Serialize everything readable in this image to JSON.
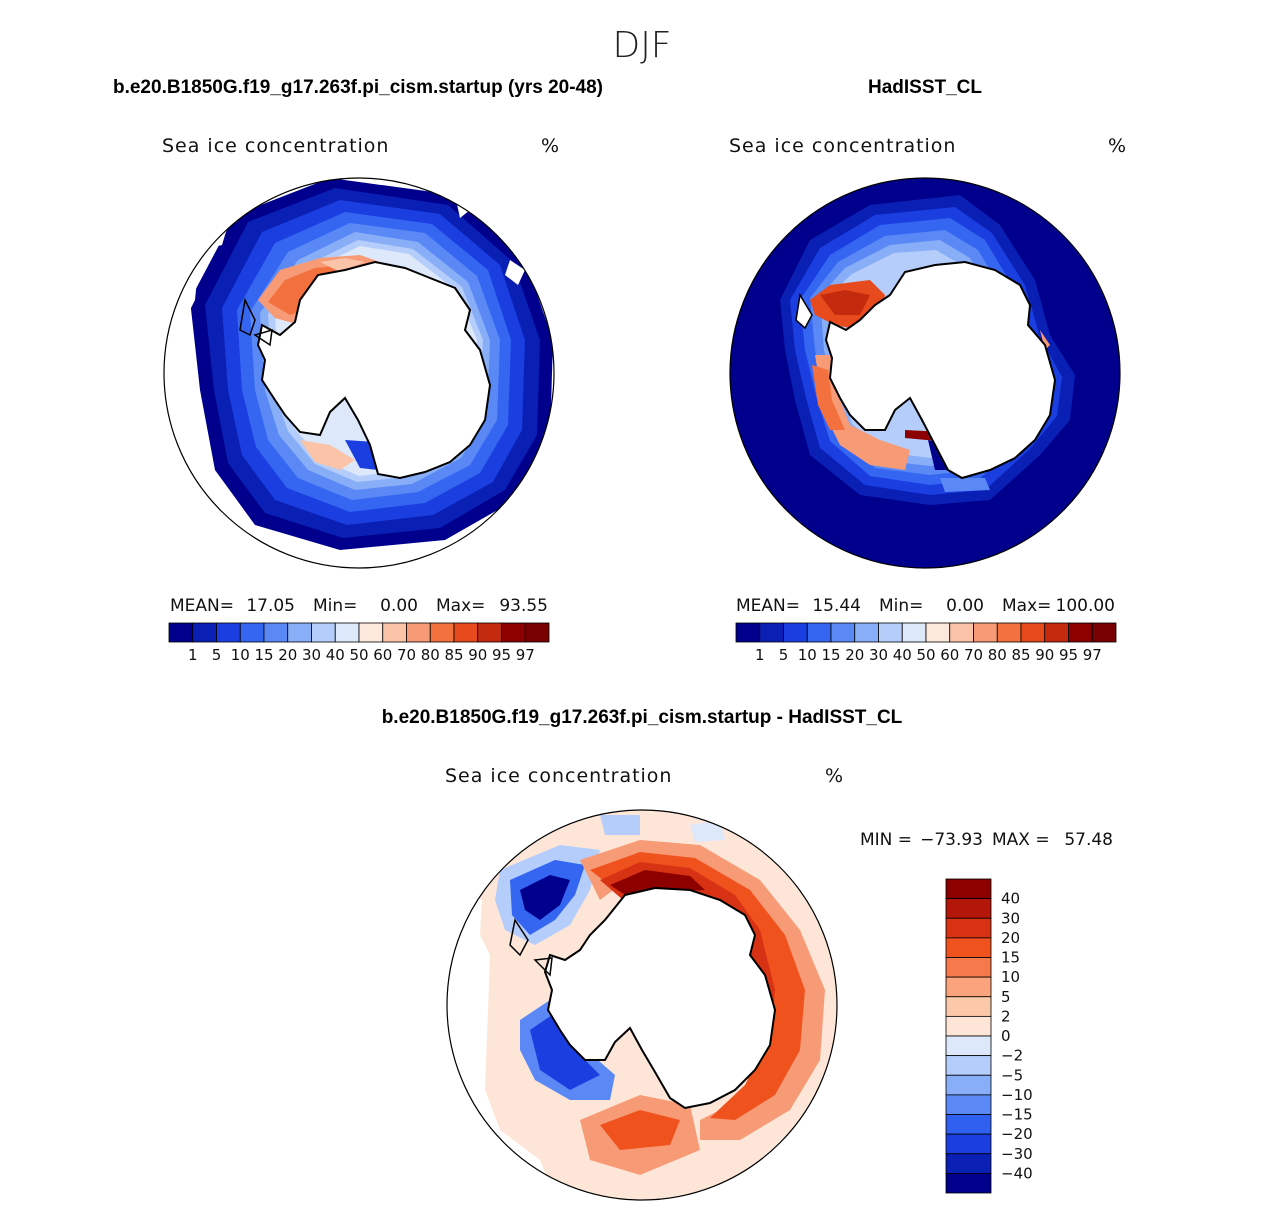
{
  "season": "DJF",
  "panels": {
    "model": {
      "title": "b.e20.B1850G.f19_g17.263f.pi_cism.startup (yrs 20-48)",
      "variable": "Sea ice concentration",
      "units": "%",
      "mean_label": "MEAN=",
      "mean": "17.05",
      "min_label": "Min=",
      "min": "0.00",
      "max_label": "Max=",
      "max": "93.55"
    },
    "obs": {
      "title": "HadISST_CL",
      "variable": "Sea ice concentration",
      "units": "%",
      "mean_label": "MEAN=",
      "mean": "15.44",
      "min_label": "Min=",
      "min": "0.00",
      "max_label": "Max=",
      "max": "100.00"
    },
    "diff": {
      "title": "b.e20.B1850G.f19_g17.263f.pi_cism.startup - HadISST_CL",
      "variable": "Sea ice concentration",
      "units": "%",
      "min_label": "MIN =",
      "min": "−73.93",
      "max_label": "MAX =",
      "max": "57.48"
    }
  },
  "chart_data": [
    {
      "type": "heatmap",
      "projection": "south polar stereographic",
      "title": "b.e20.B1850G.f19_g17.263f.pi_cism.startup (yrs 20-48)",
      "variable": "Sea ice concentration",
      "units": "%",
      "mean": 17.05,
      "min": 0.0,
      "max": 93.55,
      "colorbar": {
        "orientation": "horizontal",
        "levels": [
          "1",
          "5",
          "10",
          "15",
          "20",
          "30",
          "40",
          "50",
          "60",
          "70",
          "80",
          "85",
          "90",
          "95",
          "97"
        ],
        "colors": [
          "#00008c",
          "#0a1fb4",
          "#1a3ee0",
          "#3466f2",
          "#5a89f6",
          "#89aef8",
          "#b5cdfa",
          "#dde8fb",
          "#fde8dc",
          "#fbc4a8",
          "#f79a76",
          "#f3713f",
          "#e64a1d",
          "#c42a0e",
          "#8c0000",
          "#780000"
        ]
      }
    },
    {
      "type": "heatmap",
      "projection": "south polar stereographic",
      "title": "HadISST_CL",
      "variable": "Sea ice concentration",
      "units": "%",
      "mean": 15.44,
      "min": 0.0,
      "max": 100.0,
      "colorbar": {
        "orientation": "horizontal",
        "levels": [
          "1",
          "5",
          "10",
          "15",
          "20",
          "30",
          "40",
          "50",
          "60",
          "70",
          "80",
          "85",
          "90",
          "95",
          "97"
        ],
        "colors": [
          "#00008c",
          "#0a1fb4",
          "#1a3ee0",
          "#3466f2",
          "#5a89f6",
          "#89aef8",
          "#b5cdfa",
          "#dde8fb",
          "#fde8dc",
          "#fbc4a8",
          "#f79a76",
          "#f3713f",
          "#e64a1d",
          "#c42a0e",
          "#8c0000",
          "#780000"
        ]
      }
    },
    {
      "type": "heatmap",
      "projection": "south polar stereographic",
      "title": "b.e20.B1850G.f19_g17.263f.pi_cism.startup - HadISST_CL",
      "variable": "Sea ice concentration",
      "units": "%",
      "min": -73.93,
      "max": 57.48,
      "colorbar": {
        "orientation": "vertical",
        "levels": [
          "40",
          "30",
          "20",
          "15",
          "10",
          "5",
          "2",
          "0",
          "−2",
          "−5",
          "−10",
          "−15",
          "−20",
          "−30",
          "−40"
        ],
        "colors": [
          "#8c0000",
          "#b4160a",
          "#d83214",
          "#f0521e",
          "#f5794a",
          "#faa37c",
          "#fcc8aa",
          "#fde6d8",
          "#dde8fb",
          "#b5cdfa",
          "#89aef8",
          "#5a89f6",
          "#2f60ef",
          "#1a3ee0",
          "#0a1fb4",
          "#00008c"
        ]
      }
    }
  ]
}
